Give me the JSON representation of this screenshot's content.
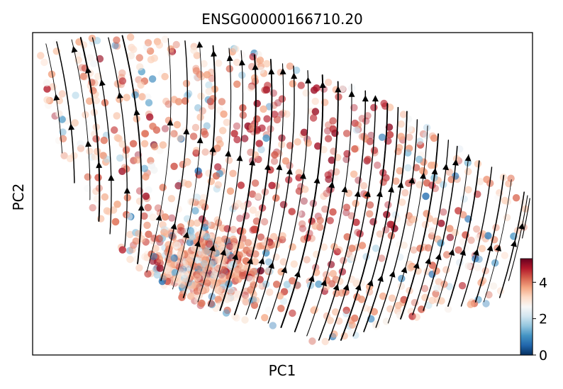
{
  "chart_data": {
    "type": "scatter",
    "title": "ENSG00000166710.20",
    "xlabel": "PC1",
    "ylabel": "PC2",
    "x_ticks_shown": false,
    "y_ticks_shown": false,
    "grid": false,
    "overlay": "velocity streamlines with arrowheads",
    "colormap": {
      "name": "RdBu_r",
      "range": [
        0,
        5.3
      ],
      "ticks": [
        0,
        2,
        4
      ],
      "tick_labels": [
        "0",
        "2",
        "4"
      ],
      "colors": [
        "#053061",
        "#2166ac",
        "#4393c3",
        "#92c5de",
        "#d1e5f0",
        "#f7f7f7",
        "#fddbc7",
        "#f4a582",
        "#d6604d",
        "#b2182b",
        "#67001f"
      ]
    },
    "colorbar_placement": "right"
  }
}
